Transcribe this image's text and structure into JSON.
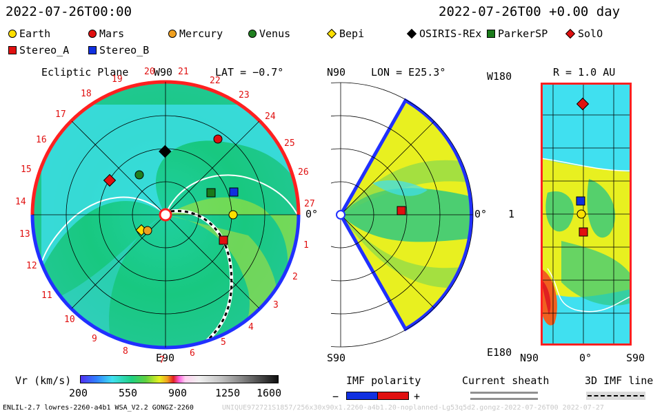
{
  "header": {
    "datetime_left": "2022-07-26T00:00",
    "datetime_right": "2022-07-26T00 +0.00 day"
  },
  "legend": [
    {
      "label": "Earth",
      "shape": "circle",
      "color": "#ffe000"
    },
    {
      "label": "Mars",
      "shape": "circle",
      "color": "#e01010"
    },
    {
      "label": "Mercury",
      "shape": "circle",
      "color": "#f0a020"
    },
    {
      "label": "Venus",
      "shape": "circle",
      "color": "#208020"
    },
    {
      "label": "Bepi",
      "shape": "diamond",
      "color": "#ffe000"
    },
    {
      "label": "OSIRIS-REx",
      "shape": "diamond",
      "color": "#000000"
    },
    {
      "label": "ParkerSP",
      "shape": "square",
      "color": "#1a7a1a"
    },
    {
      "label": "SolO",
      "shape": "diamond",
      "color": "#e01010"
    },
    {
      "label": "Stereo_A",
      "shape": "square",
      "color": "#e01010"
    },
    {
      "label": "Stereo_B",
      "shape": "square",
      "color": "#1030e0"
    }
  ],
  "ecliptic": {
    "title": "Ecliptic Plane",
    "top_label": "W90",
    "lat_label": "LAT = −0.7°",
    "bottom_label": "E90",
    "right_label": "0°",
    "rotation_numbers": [
      "20",
      "21",
      "22",
      "23",
      "24",
      "25",
      "26",
      "27",
      "1",
      "2",
      "3",
      "4",
      "5",
      "6",
      "7",
      "8",
      "9",
      "10",
      "11",
      "12",
      "13",
      "14",
      "15",
      "16",
      "17",
      "18",
      "19"
    ]
  },
  "meridional": {
    "top_label": "N90",
    "lon_label": "LON = E25.3°",
    "right_label": "0°",
    "bottom_label": "S90"
  },
  "radial": {
    "top_left": "W180",
    "r_label": "R = 1.0 AU",
    "mid_left": "1",
    "bottom_left": "E180",
    "x_labels": [
      "N90",
      "0°",
      "S90"
    ]
  },
  "colorbar": {
    "title": "Vr (km/s)",
    "ticks": [
      "200",
      "550",
      "900",
      "1250",
      "1600"
    ]
  },
  "imf": {
    "title": "IMF polarity",
    "minus": "−",
    "plus": "+"
  },
  "sheath": {
    "title": "Current sheath"
  },
  "imf3d": {
    "title": "3D IMF line"
  },
  "footer": {
    "left": "ENLIL-2.7 lowres-2260-a4b1 WSA_V2.2 GONGZ-2260",
    "right": "UNIQUE972721S1857/256x30x90x1.2260-a4b1.20-noplanned-Lg53q5d2.gongz-2022-07-26T00 2022-07-27"
  },
  "colors": {
    "bg_field": "#18c878",
    "cyan_region": "#40e0f0",
    "yellow_region": "#e8f020",
    "red_rim": "#ff2020",
    "blue_rim": "#2030ff"
  }
}
